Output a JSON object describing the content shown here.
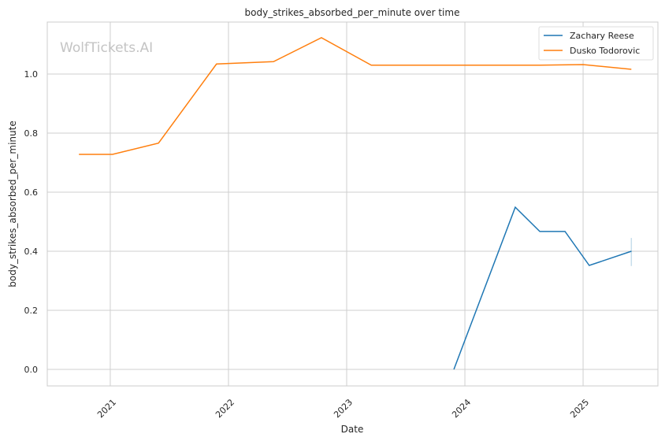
{
  "chart_data": {
    "type": "line",
    "title": "body_strikes_absorbed_per_minute over time",
    "xlabel": "Date",
    "ylabel": "body_strikes_absorbed_per_minute",
    "watermark": "WolfTickets.AI",
    "xlim": [
      "2020-06-20",
      "2025-08-20"
    ],
    "ylim": [
      -0.056,
      1.176
    ],
    "x_ticks": [
      "2021",
      "2022",
      "2023",
      "2024",
      "2025"
    ],
    "y_ticks": [
      "0.0",
      "0.2",
      "0.4",
      "0.6",
      "0.8",
      "1.0"
    ],
    "grid": true,
    "legend_position": "top-right",
    "series": [
      {
        "name": "Zachary Reese",
        "color": "#1f77b4",
        "x": [
          "2023-11-28",
          "2024-06-05",
          "2024-08-20",
          "2024-11-06",
          "2025-01-20",
          "2025-05-30"
        ],
        "y": [
          0.0,
          0.549,
          0.467,
          0.467,
          0.352,
          0.4
        ],
        "error_band_last": [
          0.35,
          0.445
        ]
      },
      {
        "name": "Dusko Todorovic",
        "color": "#ff7f0e",
        "x": [
          "2020-09-26",
          "2021-01-08",
          "2021-05-30",
          "2021-11-25",
          "2022-05-20",
          "2022-10-15",
          "2023-03-18",
          "2024-08-20",
          "2025-01-01",
          "2025-05-30"
        ],
        "y": [
          0.728,
          0.728,
          0.766,
          1.034,
          1.042,
          1.123,
          1.03,
          1.03,
          1.032,
          1.016
        ]
      }
    ]
  }
}
